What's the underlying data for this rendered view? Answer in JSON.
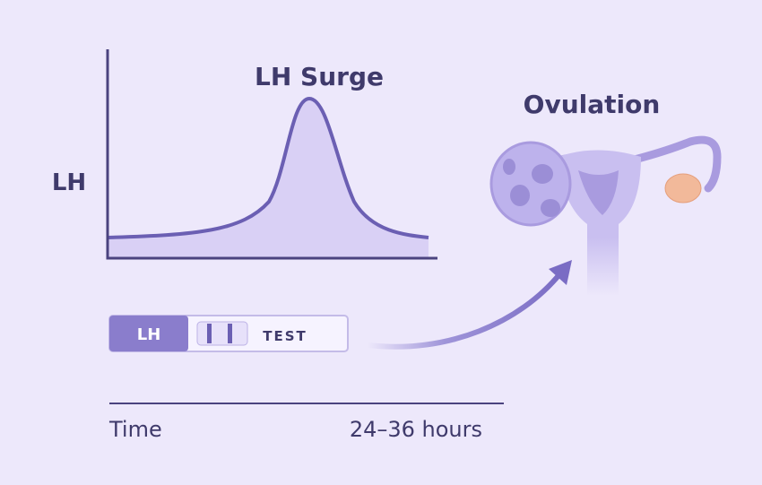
{
  "graph": {
    "title": "LH Surge",
    "y_label": "LH"
  },
  "test_strip": {
    "label": "LH",
    "text": "TEST"
  },
  "ovulation": {
    "label": "Ovulation"
  },
  "timeline": {
    "start": "Time",
    "end": "24–36 hours"
  }
}
